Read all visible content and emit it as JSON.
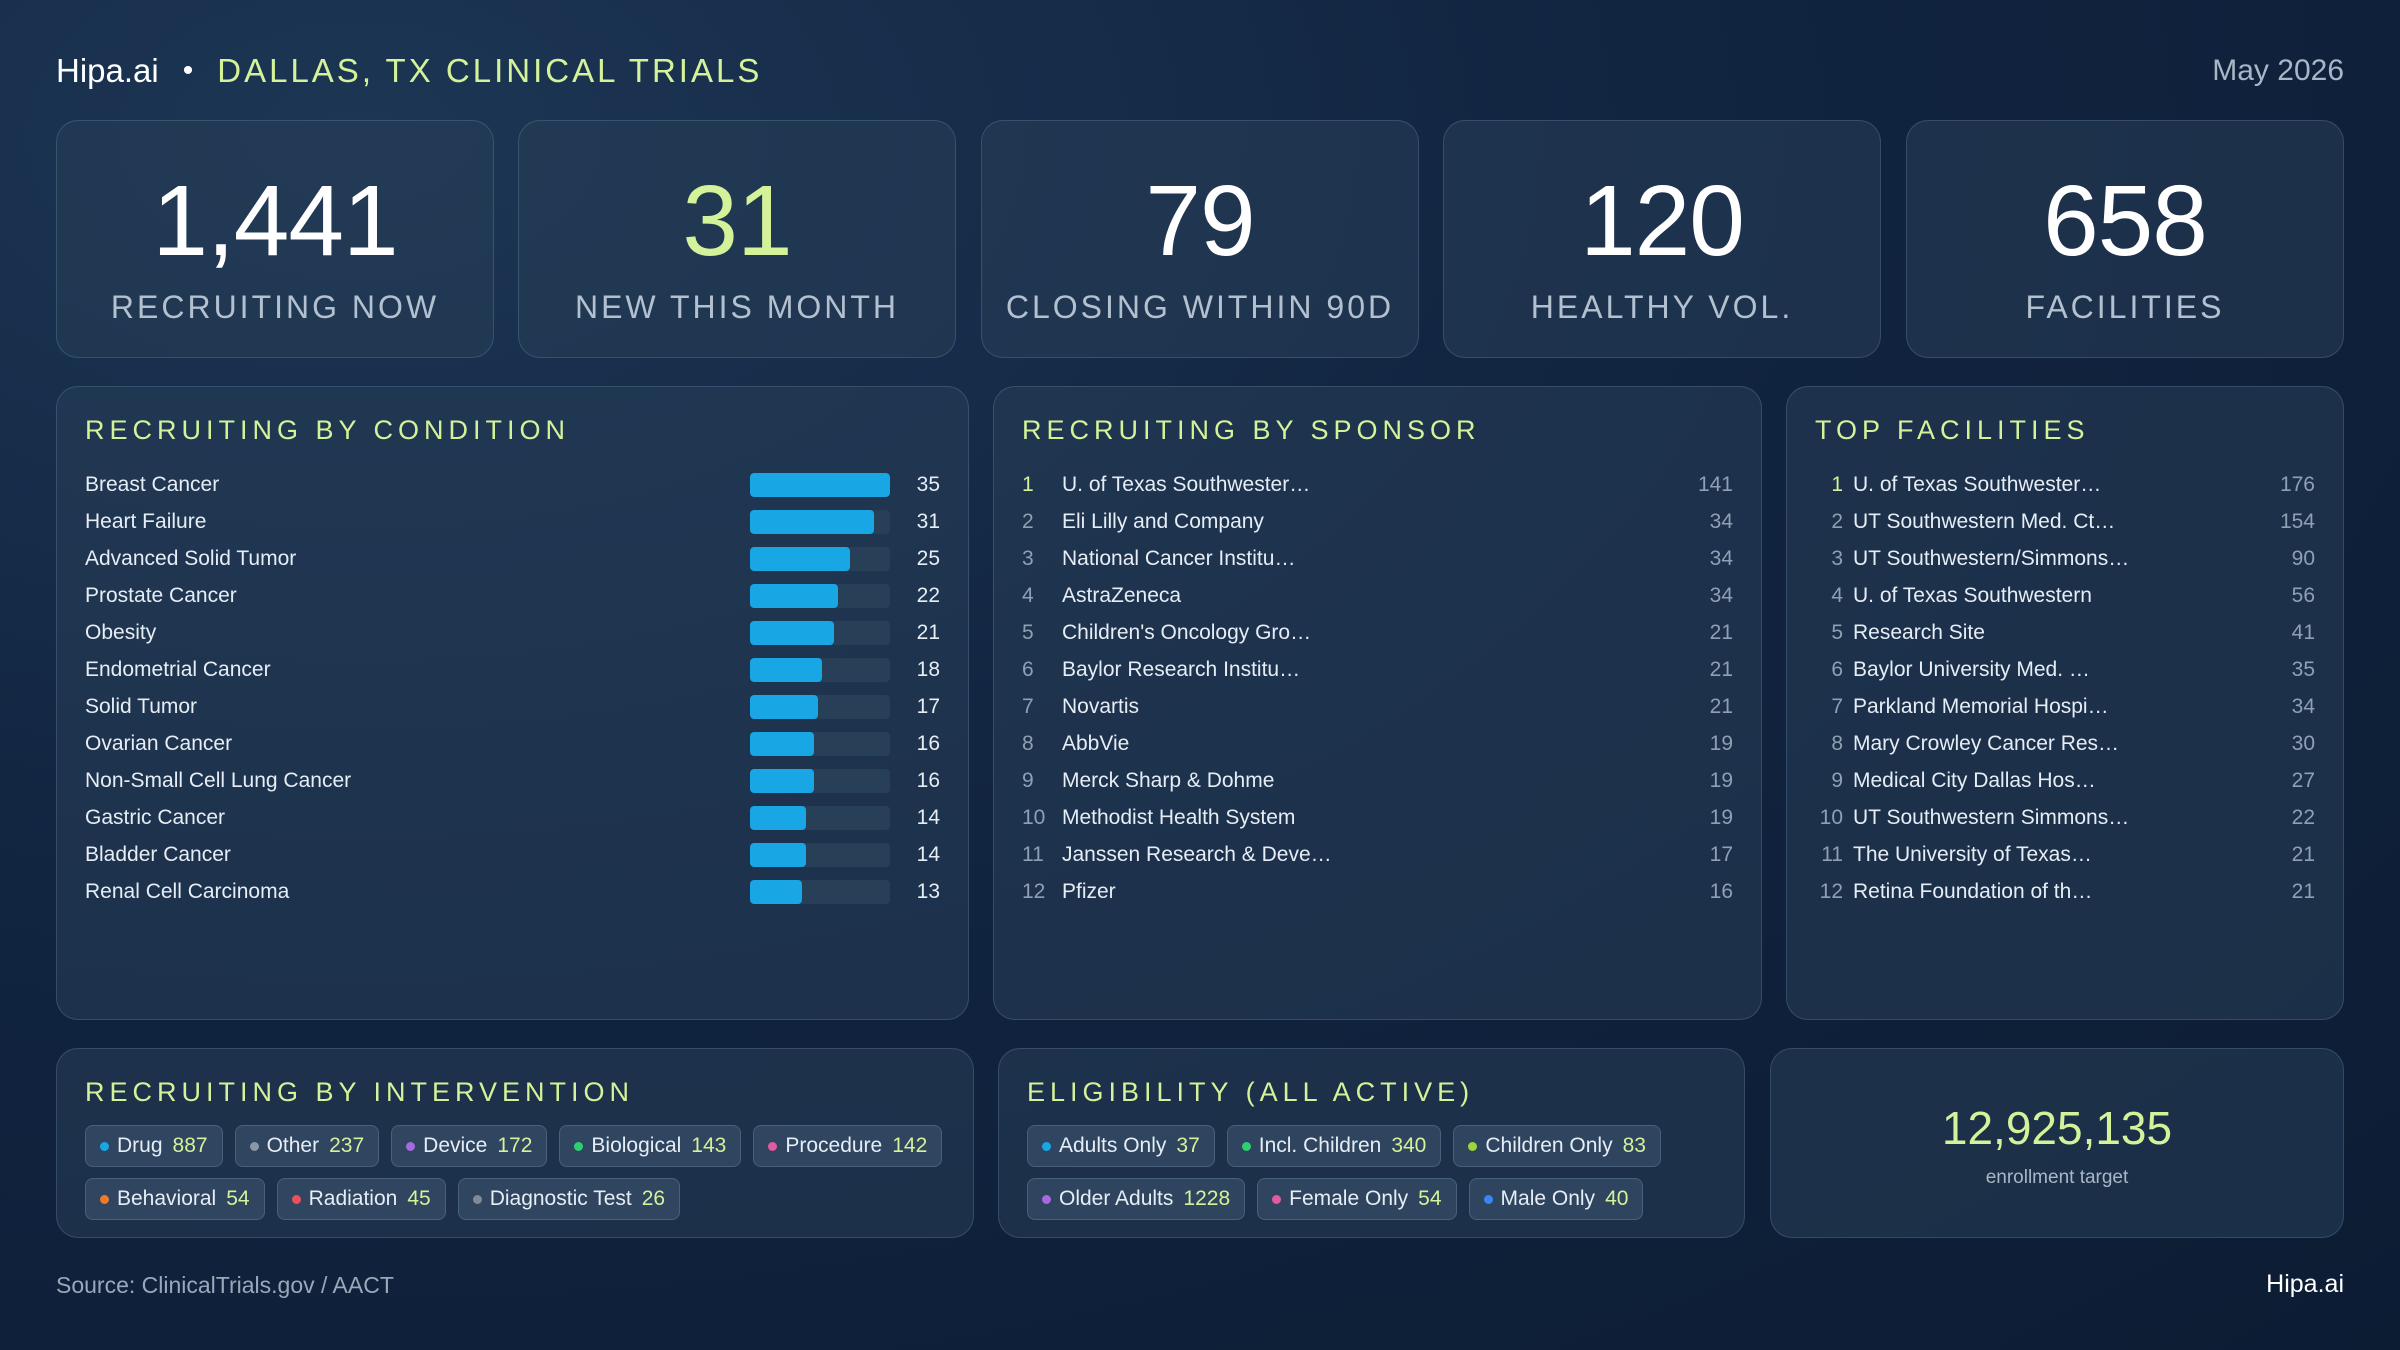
{
  "header": {
    "brand": "Hipa.ai",
    "separator": "•",
    "title": "DALLAS, TX CLINICAL TRIALS",
    "date": "May 2026"
  },
  "kpis": [
    {
      "value": "1,441",
      "label": "RECRUITING NOW"
    },
    {
      "value": "31",
      "label": "NEW THIS MONTH"
    },
    {
      "value": "79",
      "label": "CLOSING WITHIN 90D"
    },
    {
      "value": "120",
      "label": "HEALTHY VOL."
    },
    {
      "value": "658",
      "label": "FACILITIES"
    }
  ],
  "conditions": {
    "title": "RECRUITING BY CONDITION",
    "max": 35,
    "bar_color": "#19a6e4",
    "items": [
      {
        "name": "Breast Cancer",
        "count": "35",
        "value": 35
      },
      {
        "name": "Heart Failure",
        "count": "31",
        "value": 31
      },
      {
        "name": "Advanced Solid Tumor",
        "count": "25",
        "value": 25
      },
      {
        "name": "Prostate Cancer",
        "count": "22",
        "value": 22
      },
      {
        "name": "Obesity",
        "count": "21",
        "value": 21
      },
      {
        "name": "Endometrial Cancer",
        "count": "18",
        "value": 18
      },
      {
        "name": "Solid Tumor",
        "count": "17",
        "value": 17
      },
      {
        "name": "Ovarian Cancer",
        "count": "16",
        "value": 16
      },
      {
        "name": "Non-Small Cell Lung Cancer",
        "count": "16",
        "value": 16
      },
      {
        "name": "Gastric Cancer",
        "count": "14",
        "value": 14
      },
      {
        "name": "Bladder Cancer",
        "count": "14",
        "value": 14
      },
      {
        "name": "Renal Cell Carcinoma",
        "count": "13",
        "value": 13
      }
    ]
  },
  "sponsors": {
    "title": "RECRUITING BY SPONSOR",
    "items": [
      {
        "rank": "1",
        "name": "U. of Texas Southwester…",
        "count": "141"
      },
      {
        "rank": "2",
        "name": "Eli Lilly and Company",
        "count": "34"
      },
      {
        "rank": "3",
        "name": "National Cancer Institu…",
        "count": "34"
      },
      {
        "rank": "4",
        "name": "AstraZeneca",
        "count": "34"
      },
      {
        "rank": "5",
        "name": "Children's Oncology Gro…",
        "count": "21"
      },
      {
        "rank": "6",
        "name": "Baylor Research Institu…",
        "count": "21"
      },
      {
        "rank": "7",
        "name": "Novartis",
        "count": "21"
      },
      {
        "rank": "8",
        "name": "AbbVie",
        "count": "19"
      },
      {
        "rank": "9",
        "name": "Merck Sharp & Dohme",
        "count": "19"
      },
      {
        "rank": "10",
        "name": "Methodist Health System",
        "count": "19"
      },
      {
        "rank": "11",
        "name": "Janssen Research & Deve…",
        "count": "17"
      },
      {
        "rank": "12",
        "name": "Pfizer",
        "count": "16"
      }
    ]
  },
  "facilities": {
    "title": "TOP FACILITIES",
    "items": [
      {
        "rank": "1",
        "name": "U. of Texas Southwester…",
        "count": "176"
      },
      {
        "rank": "2",
        "name": "UT Southwestern Med. Ct…",
        "count": "154"
      },
      {
        "rank": "3",
        "name": "UT Southwestern/Simmons…",
        "count": "90"
      },
      {
        "rank": "4",
        "name": "U. of Texas Southwestern",
        "count": "56"
      },
      {
        "rank": "5",
        "name": "Research Site",
        "count": "41"
      },
      {
        "rank": "6",
        "name": "Baylor University Med. …",
        "count": "35"
      },
      {
        "rank": "7",
        "name": "Parkland Memorial Hospi…",
        "count": "34"
      },
      {
        "rank": "8",
        "name": "Mary Crowley Cancer Res…",
        "count": "30"
      },
      {
        "rank": "9",
        "name": "Medical City Dallas Hos…",
        "count": "27"
      },
      {
        "rank": "10",
        "name": "UT Southwestern Simmons…",
        "count": "22"
      },
      {
        "rank": "11",
        "name": "The University of Texas…",
        "count": "21"
      },
      {
        "rank": "12",
        "name": "Retina Foundation of th…",
        "count": "21"
      }
    ]
  },
  "interventions": {
    "title": "RECRUITING BY INTERVENTION",
    "items": [
      {
        "label": "Drug",
        "count": "887",
        "color": "#19a6e4"
      },
      {
        "label": "Other",
        "count": "237",
        "color": "#8a97a6"
      },
      {
        "label": "Device",
        "count": "172",
        "color": "#a56ae0"
      },
      {
        "label": "Biological",
        "count": "143",
        "color": "#2ecf6f"
      },
      {
        "label": "Procedure",
        "count": "142",
        "color": "#e45aa0"
      },
      {
        "label": "Behavioral",
        "count": "54",
        "color": "#f07a2a"
      },
      {
        "label": "Radiation",
        "count": "45",
        "color": "#ef4f5a"
      },
      {
        "label": "Diagnostic Test",
        "count": "26",
        "color": "#7f8b99"
      }
    ]
  },
  "eligibility": {
    "title": "ELIGIBILITY (ALL ACTIVE)",
    "items": [
      {
        "label": "Adults Only",
        "count": "37",
        "color": "#19a6e4"
      },
      {
        "label": "Incl. Children",
        "count": "340",
        "color": "#2ecf6f"
      },
      {
        "label": "Children Only",
        "count": "83",
        "color": "#9ad63c"
      },
      {
        "label": "Older Adults",
        "count": "1228",
        "color": "#a56ae0"
      },
      {
        "label": "Female Only",
        "count": "54",
        "color": "#e45aa0"
      },
      {
        "label": "Male Only",
        "count": "40",
        "color": "#3a86ef"
      }
    ]
  },
  "enrollment": {
    "value": "12,925,135",
    "label": "enrollment target"
  },
  "footer": {
    "source": "Source: ClinicalTrials.gov / AACT",
    "brand": "Hipa.ai"
  }
}
